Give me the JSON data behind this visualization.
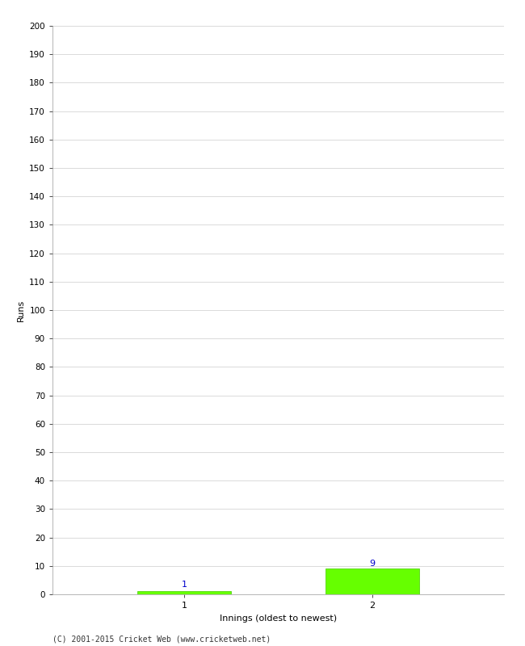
{
  "categories": [
    1,
    2
  ],
  "values": [
    1,
    9
  ],
  "bar_color": "#66ff00",
  "bar_edge_color": "#44cc00",
  "value_labels": [
    "1",
    "9"
  ],
  "value_label_color": "#0000cc",
  "xlabel": "Innings (oldest to newest)",
  "ylabel": "Runs",
  "ylim": [
    0,
    200
  ],
  "yticks": [
    0,
    10,
    20,
    30,
    40,
    50,
    60,
    70,
    80,
    90,
    100,
    110,
    120,
    130,
    140,
    150,
    160,
    170,
    180,
    190,
    200
  ],
  "xticks": [
    1,
    2
  ],
  "grid_color": "#cccccc",
  "background_color": "#ffffff",
  "footer": "(C) 2001-2015 Cricket Web (www.cricketweb.net)",
  "bar_width": 0.5
}
